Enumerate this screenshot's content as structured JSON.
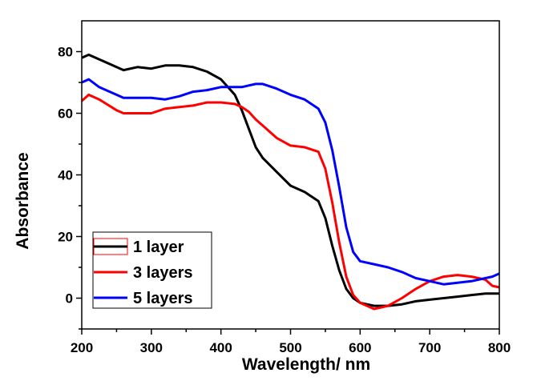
{
  "chart_data": {
    "type": "line",
    "title": "",
    "xlabel": "Wavelength/ nm",
    "ylabel": "Absorbance",
    "xlim": [
      200,
      800
    ],
    "ylim": [
      -10,
      90
    ],
    "xticks": [
      200,
      300,
      400,
      500,
      600,
      700,
      800
    ],
    "xtick_labels": [
      "200",
      "300",
      "400",
      "500",
      "600",
      "700",
      "800"
    ],
    "yticks": [
      0,
      20,
      40,
      60,
      80
    ],
    "ytick_labels": [
      "0",
      "20",
      "40",
      "60",
      "80"
    ],
    "grid": false,
    "legend_position": "bottom-left",
    "x": [
      200,
      210,
      225,
      250,
      260,
      280,
      300,
      320,
      340,
      360,
      380,
      400,
      420,
      430,
      440,
      450,
      460,
      480,
      500,
      520,
      540,
      550,
      560,
      570,
      580,
      590,
      600,
      620,
      640,
      660,
      680,
      700,
      720,
      740,
      760,
      780,
      790,
      800
    ],
    "series": [
      {
        "name": "1 layer",
        "color": "#000000",
        "values": [
          78,
          79,
          77.5,
          75,
          74,
          75,
          74.5,
          75.5,
          75.5,
          75,
          73.5,
          71,
          66,
          61,
          55,
          49,
          45.5,
          41,
          36.5,
          34.5,
          31.5,
          26,
          17,
          9,
          3,
          0,
          -1.5,
          -2.5,
          -2.5,
          -2,
          -1,
          -0.5,
          0,
          0.5,
          1,
          1.5,
          1.5,
          1.5
        ]
      },
      {
        "name": "3 layers",
        "color": "#ff0000",
        "values": [
          64,
          66,
          64.5,
          61,
          60,
          60,
          60,
          61.5,
          62,
          62.5,
          63.5,
          63.5,
          63,
          62,
          60.5,
          58,
          56,
          52,
          49.5,
          49,
          47.5,
          42,
          31,
          18,
          7,
          1,
          -1.5,
          -3.5,
          -2.5,
          0,
          3,
          5.5,
          7,
          7.5,
          7,
          6,
          4,
          3.5
        ]
      },
      {
        "name": "5 layers",
        "color": "#0000ff",
        "values": [
          70,
          71,
          68.5,
          66,
          65,
          65,
          65,
          64.5,
          65.5,
          67,
          67.5,
          68.5,
          68.5,
          68.5,
          69,
          69.5,
          69.5,
          68,
          66,
          64.5,
          61.5,
          57,
          48,
          36,
          23,
          15,
          12,
          11,
          10,
          8.5,
          6.5,
          5.5,
          4.5,
          5,
          5.5,
          6.5,
          7,
          8
        ]
      }
    ]
  }
}
